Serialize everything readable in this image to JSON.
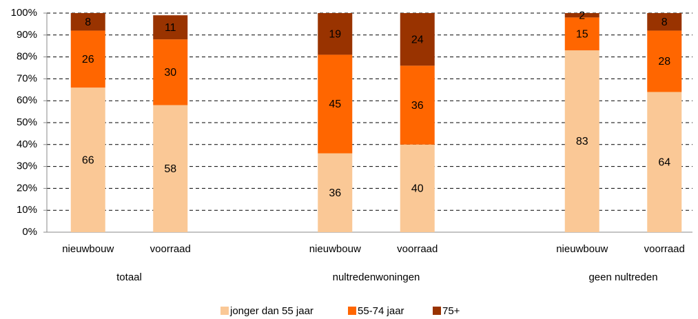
{
  "chart_data": {
    "type": "stacked_bar",
    "categories": [
      "nieuwbouw",
      "voorraad",
      null,
      "nieuwbouw",
      "voorraad",
      null,
      "nieuwbouw",
      "voorraad"
    ],
    "groups": [
      "totaal",
      "nultredenwoningen",
      "geen nultreden"
    ],
    "series": [
      {
        "name": "jonger dan 55 jaar",
        "color": "#fac896",
        "values": [
          66,
          58,
          null,
          36,
          40,
          null,
          83,
          64
        ]
      },
      {
        "name": "55-74 jaar",
        "color": "#ff6600",
        "values": [
          26,
          30,
          null,
          45,
          36,
          null,
          15,
          28
        ]
      },
      {
        "name": "75+",
        "color": "#993300",
        "values": [
          8,
          11,
          null,
          19,
          24,
          null,
          2,
          8
        ]
      }
    ],
    "ylim": [
      0,
      100
    ],
    "yticks": [
      {
        "value": 0,
        "label": "0%"
      },
      {
        "value": 10,
        "label": "10%"
      },
      {
        "value": 20,
        "label": "20%"
      },
      {
        "value": 30,
        "label": "30%"
      },
      {
        "value": 40,
        "label": "40%"
      },
      {
        "value": 50,
        "label": "50%"
      },
      {
        "value": 60,
        "label": "60%"
      },
      {
        "value": 70,
        "label": "70%"
      },
      {
        "value": 80,
        "label": "80%"
      },
      {
        "value": 90,
        "label": "90%"
      },
      {
        "value": 100,
        "label": "100%"
      }
    ],
    "grid": true,
    "legend": "bottom"
  }
}
